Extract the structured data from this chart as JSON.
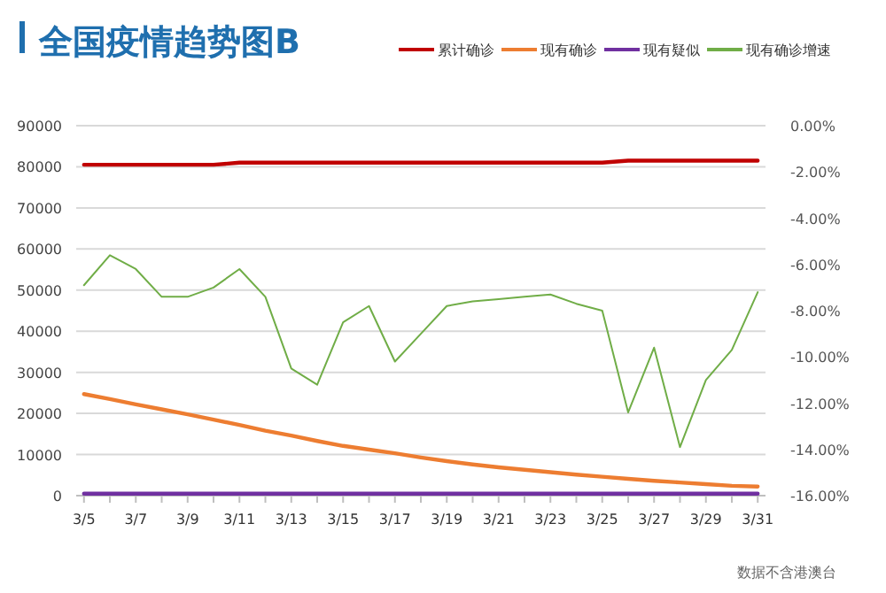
{
  "chart_data": {
    "type": "line",
    "title": "全国疫情趋势图B",
    "annotations": [
      "数据不含港澳台"
    ],
    "categories": [
      "3/5",
      null,
      "3/7",
      null,
      "3/9",
      null,
      "3/11",
      null,
      "3/13",
      null,
      "3/15",
      null,
      "3/17",
      null,
      "3/19",
      null,
      "3/21",
      null,
      "3/23",
      null,
      "3/25",
      null,
      "3/27",
      null,
      "3/29",
      null,
      "3/31"
    ],
    "series": [
      {
        "name": "累计确诊",
        "color": "#c00000",
        "values": [
          80500,
          80500,
          80500,
          80500,
          80500,
          80500,
          81000,
          81000,
          81000,
          81000,
          81000,
          81000,
          81000,
          81000,
          81000,
          81000,
          81000,
          81000,
          81000,
          81000,
          81000,
          81500,
          81500,
          81500,
          81500,
          81500,
          81500
        ]
      },
      {
        "name": "现有确诊",
        "color": "#ed7d31",
        "values": [
          24700,
          23500,
          22200,
          21000,
          19800,
          18500,
          17200,
          15800,
          14600,
          13300,
          12100,
          11200,
          10300,
          9300,
          8400,
          7600,
          6900,
          6300,
          5700,
          5100,
          4600,
          4100,
          3600,
          3200,
          2800,
          2400,
          2200
        ]
      },
      {
        "name": "现有疑似",
        "color": "#7030a0",
        "values": [
          500,
          500,
          500,
          500,
          500,
          500,
          500,
          500,
          500,
          500,
          500,
          500,
          500,
          500,
          500,
          500,
          500,
          500,
          500,
          500,
          500,
          500,
          500,
          500,
          500,
          500,
          500
        ]
      },
      {
        "name": "现有确诊增速",
        "color": "#70ad47",
        "axis": "y2",
        "values": [
          -6.9,
          -5.6,
          -6.2,
          -7.4,
          -7.4,
          -7.0,
          -6.2,
          -7.4,
          -10.5,
          -11.2,
          -8.5,
          -7.8,
          -10.2,
          -9.0,
          -7.8,
          -7.6,
          -7.5,
          -7.4,
          -7.3,
          -7.7,
          -8.0,
          -12.4,
          -9.6,
          -13.9,
          -11.0,
          -9.7,
          -7.2
        ]
      }
    ],
    "ylim": [
      0,
      90000
    ],
    "yticks": [
      0,
      10000,
      20000,
      30000,
      40000,
      50000,
      60000,
      70000,
      80000,
      90000
    ],
    "y2lim": [
      -16,
      0
    ],
    "y2ticks": [
      {
        "value": -16,
        "label": "-16.00%"
      },
      {
        "value": -14,
        "label": "-14.00%"
      },
      {
        "value": -12,
        "label": "-12.00%"
      },
      {
        "value": -10,
        "label": "-10.00%"
      },
      {
        "value": -8,
        "label": "-8.00%"
      },
      {
        "value": -6,
        "label": "-6.00%"
      },
      {
        "value": -4,
        "label": "-4.00%"
      },
      {
        "value": -2,
        "label": "-2.00%"
      },
      {
        "value": 0,
        "label": "0.00%"
      }
    ],
    "grid": "y",
    "legend": "top right",
    "marker": "none",
    "line_style": "solid"
  }
}
